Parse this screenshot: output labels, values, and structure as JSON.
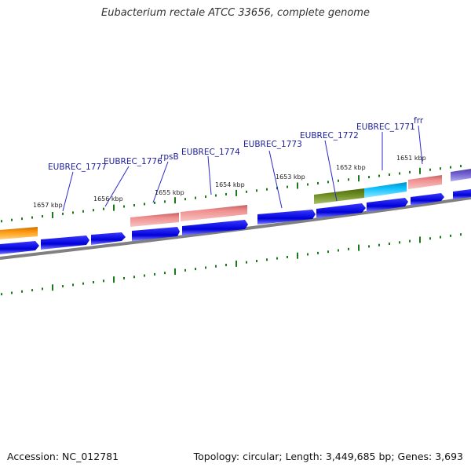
{
  "title": "Eubacterium rectale ATCC 33656, complete genome",
  "footer": {
    "accession": "Accession: NC_012781",
    "stats": "Topology: circular; Length: 3,449,685 bp; Genes: 3,693"
  },
  "colors": {
    "forward_cds": "#0000e0",
    "rna_salmon": "#f08f8f",
    "backbone": "#808080",
    "ticks": "#1a7a1a",
    "label_text": "#1c1c9c"
  },
  "gene_labels": [
    "EUBREC_1777",
    "EUBREC_1776",
    "rpsB",
    "EUBREC_1774",
    "EUBREC_1773",
    "EUBREC_1772",
    "EUBREC_1771",
    "frr"
  ],
  "kbp_labels": [
    "1657 kbp",
    "1656 kbp",
    "1655 kbp",
    "1654 kbp",
    "1653 kbp",
    "1652 kbp",
    "1651 kbp"
  ]
}
